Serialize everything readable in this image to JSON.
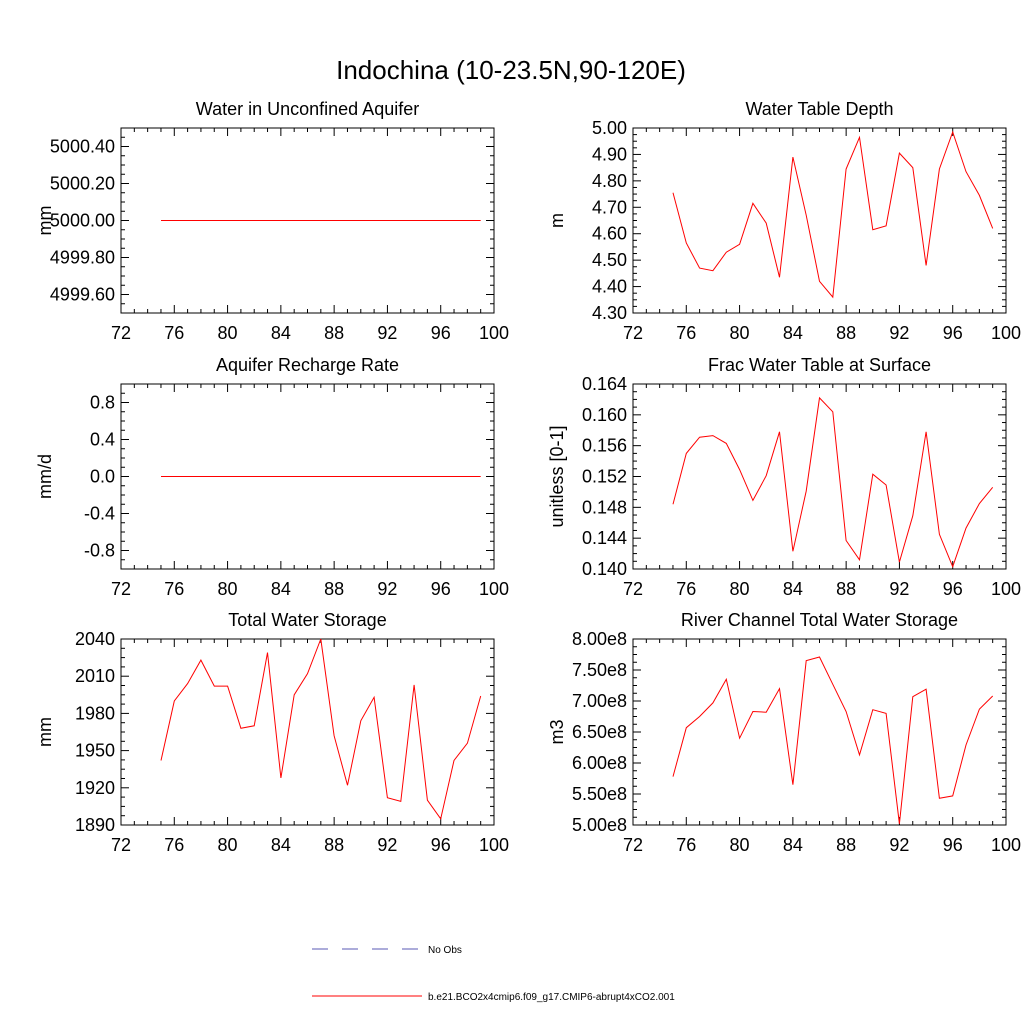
{
  "figure_title": "Indochina (10-23.5N,90-120E)",
  "colors": {
    "series": "#ff0000",
    "obs": "#5a5ab4",
    "axis": "#000000"
  },
  "legend": {
    "obs_label": "No Obs",
    "model_label": "b.e21.BCO2x4cmip6.f09_g17.CMIP6-abrupt4xCO2.001"
  },
  "chart_data": [
    {
      "type": "line",
      "title": "Water in Unconfined Aquifer",
      "ylabel": "mm",
      "xlim": [
        72,
        100
      ],
      "ylim": [
        4999.5,
        5000.5
      ],
      "xticks": [
        72,
        76,
        80,
        84,
        88,
        92,
        96,
        100
      ],
      "xtick_labels": [
        "72",
        "76",
        "80",
        "84",
        "88",
        "92",
        "96",
        "100"
      ],
      "yticks": [
        4999.6,
        4999.8,
        5000.0,
        5000.2,
        5000.4
      ],
      "ytick_labels": [
        "4999.60",
        "4999.80",
        "5000.00",
        "5000.20",
        "5000.40"
      ],
      "x": [
        75,
        76,
        77,
        78,
        79,
        80,
        81,
        82,
        83,
        84,
        85,
        86,
        87,
        88,
        89,
        90,
        91,
        92,
        93,
        94,
        95,
        96,
        97,
        98,
        99
      ],
      "values": [
        5000,
        5000,
        5000,
        5000,
        5000,
        5000,
        5000,
        5000,
        5000,
        5000,
        5000,
        5000,
        5000,
        5000,
        5000,
        5000,
        5000,
        5000,
        5000,
        5000,
        5000,
        5000,
        5000,
        5000,
        5000
      ]
    },
    {
      "type": "line",
      "title": "Water Table Depth",
      "ylabel": "m",
      "xlim": [
        72,
        100
      ],
      "ylim": [
        4.3,
        5.0
      ],
      "xticks": [
        72,
        76,
        80,
        84,
        88,
        92,
        96,
        100
      ],
      "xtick_labels": [
        "72",
        "76",
        "80",
        "84",
        "88",
        "92",
        "96",
        "100"
      ],
      "yticks": [
        4.3,
        4.4,
        4.5,
        4.6,
        4.7,
        4.8,
        4.9,
        5.0
      ],
      "ytick_labels": [
        "4.30",
        "4.40",
        "4.50",
        "4.60",
        "4.70",
        "4.80",
        "4.90",
        "5.00"
      ],
      "x": [
        75,
        76,
        77,
        78,
        79,
        80,
        81,
        82,
        83,
        84,
        85,
        86,
        87,
        88,
        89,
        90,
        91,
        92,
        93,
        94,
        95,
        96,
        97,
        98,
        99
      ],
      "values": [
        4.755,
        4.565,
        4.47,
        4.46,
        4.53,
        4.56,
        4.715,
        4.64,
        4.435,
        4.89,
        4.67,
        4.42,
        4.36,
        4.845,
        4.965,
        4.615,
        4.63,
        4.905,
        4.85,
        4.48,
        4.845,
        4.985,
        4.835,
        4.745,
        4.62
      ]
    },
    {
      "type": "line",
      "title": "Aquifer Recharge Rate",
      "ylabel": "mm/d",
      "xlim": [
        72,
        100
      ],
      "ylim": [
        -1.0,
        1.0
      ],
      "xticks": [
        72,
        76,
        80,
        84,
        88,
        92,
        96,
        100
      ],
      "xtick_labels": [
        "72",
        "76",
        "80",
        "84",
        "88",
        "92",
        "96",
        "100"
      ],
      "yticks": [
        -0.8,
        -0.4,
        0.0,
        0.4,
        0.8
      ],
      "ytick_labels": [
        "-0.8",
        "-0.4",
        "0.0",
        "0.4",
        "0.8"
      ],
      "x": [
        75,
        76,
        77,
        78,
        79,
        80,
        81,
        82,
        83,
        84,
        85,
        86,
        87,
        88,
        89,
        90,
        91,
        92,
        93,
        94,
        95,
        96,
        97,
        98,
        99
      ],
      "values": [
        0,
        0,
        0,
        0,
        0,
        0,
        0,
        0,
        0,
        0,
        0,
        0,
        0,
        0,
        0,
        0,
        0,
        0,
        0,
        0,
        0,
        0,
        0,
        0,
        0
      ]
    },
    {
      "type": "line",
      "title": "Frac Water Table at Surface",
      "ylabel": "unitless [0-1]",
      "xlim": [
        72,
        100
      ],
      "ylim": [
        0.14,
        0.164
      ],
      "xticks": [
        72,
        76,
        80,
        84,
        88,
        92,
        96,
        100
      ],
      "xtick_labels": [
        "72",
        "76",
        "80",
        "84",
        "88",
        "92",
        "96",
        "100"
      ],
      "yticks": [
        0.14,
        0.144,
        0.148,
        0.152,
        0.156,
        0.16,
        0.164
      ],
      "ytick_labels": [
        "0.140",
        "0.144",
        "0.148",
        "0.152",
        "0.156",
        "0.160",
        "0.164"
      ],
      "x": [
        75,
        76,
        77,
        78,
        79,
        80,
        81,
        82,
        83,
        84,
        85,
        86,
        87,
        88,
        89,
        90,
        91,
        92,
        93,
        94,
        95,
        96,
        97,
        98,
        99
      ],
      "values": [
        0.1484,
        0.155,
        0.1571,
        0.1573,
        0.1563,
        0.1529,
        0.1489,
        0.1521,
        0.1578,
        0.1423,
        0.1501,
        0.1622,
        0.1604,
        0.1437,
        0.1412,
        0.1523,
        0.1509,
        0.1409,
        0.1469,
        0.1578,
        0.1445,
        0.1403,
        0.1453,
        0.1485,
        0.1506
      ]
    },
    {
      "type": "line",
      "title": "Total Water Storage",
      "ylabel": "mm",
      "xlim": [
        72,
        100
      ],
      "ylim": [
        1890,
        2040
      ],
      "xticks": [
        72,
        76,
        80,
        84,
        88,
        92,
        96,
        100
      ],
      "xtick_labels": [
        "72",
        "76",
        "80",
        "84",
        "88",
        "92",
        "96",
        "100"
      ],
      "yticks": [
        1890,
        1920,
        1950,
        1980,
        2010,
        2040
      ],
      "ytick_labels": [
        "1890",
        "1920",
        "1950",
        "1980",
        "2010",
        "2040"
      ],
      "x": [
        75,
        76,
        77,
        78,
        79,
        80,
        81,
        82,
        83,
        84,
        85,
        86,
        87,
        88,
        89,
        90,
        91,
        92,
        93,
        94,
        95,
        96,
        97,
        98,
        99
      ],
      "values": [
        1942,
        1990,
        2004,
        2023,
        2002,
        2002,
        1968,
        1970,
        2029,
        1928,
        1995,
        2012,
        2040,
        1962,
        1922,
        1974,
        1993,
        1912,
        1909,
        2003,
        1910,
        1895,
        1942,
        1956,
        1994
      ]
    },
    {
      "type": "line",
      "title": "River Channel Total Water Storage",
      "ylabel": "m3",
      "xlim": [
        72,
        100
      ],
      "ylim": [
        500000000,
        800000000
      ],
      "xticks": [
        72,
        76,
        80,
        84,
        88,
        92,
        96,
        100
      ],
      "xtick_labels": [
        "72",
        "76",
        "80",
        "84",
        "88",
        "92",
        "96",
        "100"
      ],
      "yticks": [
        500000000,
        550000000,
        600000000,
        650000000,
        700000000,
        750000000,
        800000000
      ],
      "ytick_labels": [
        "5.00e8",
        "5.50e8",
        "6.00e8",
        "6.50e8",
        "7.00e8",
        "7.50e8",
        "8.00e8"
      ],
      "x": [
        75,
        76,
        77,
        78,
        79,
        80,
        81,
        82,
        83,
        84,
        85,
        86,
        87,
        88,
        89,
        90,
        91,
        92,
        93,
        94,
        95,
        96,
        97,
        98,
        99
      ],
      "values": [
        578000000,
        657000000,
        675000000,
        697000000,
        735000000,
        640000000,
        683000000,
        682000000,
        720000000,
        565000000,
        765000000,
        771000000,
        727000000,
        683000000,
        613000000,
        686000000,
        680000000,
        502000000,
        707000000,
        719000000,
        543000000,
        547000000,
        629000000,
        687000000,
        708000000
      ]
    }
  ]
}
